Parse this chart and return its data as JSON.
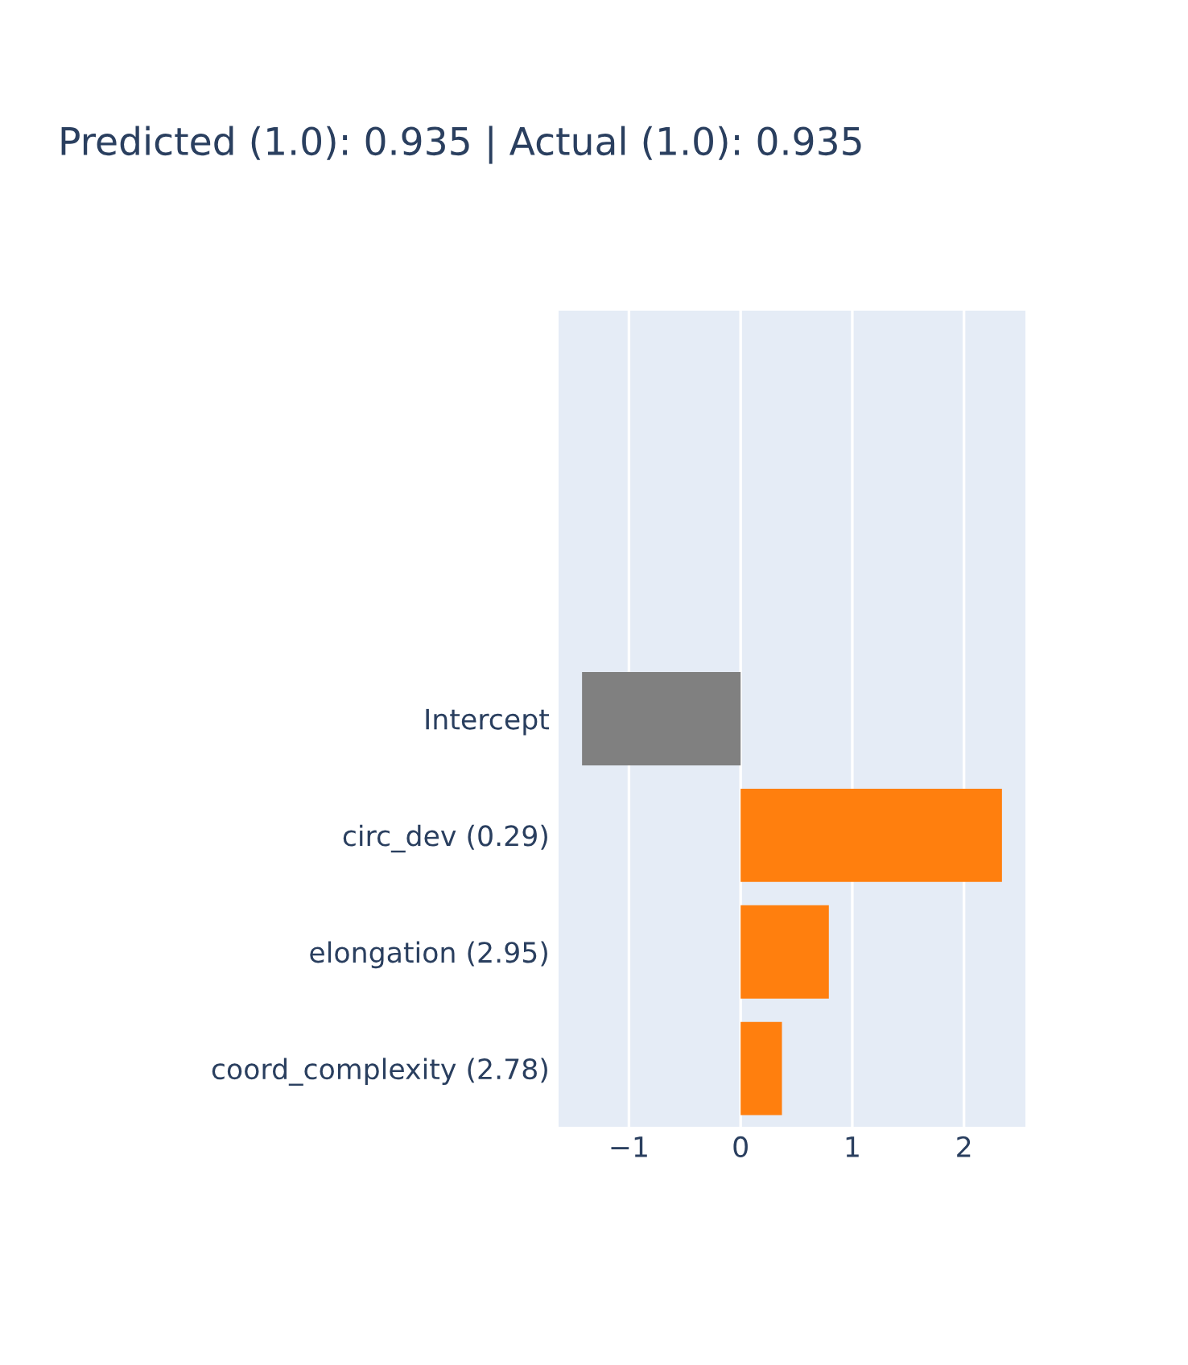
{
  "chart_data": {
    "type": "bar",
    "orientation": "horizontal",
    "title": "Predicted (1.0): 0.935 | Actual (1.0): 0.935",
    "categories": [
      null,
      null,
      null,
      "Intercept",
      "circ_dev (0.29)",
      "elongation (2.95)",
      "coord_complexity (2.78)"
    ],
    "values": [
      null,
      null,
      null,
      -1.42,
      2.34,
      0.79,
      0.37
    ],
    "colors": [
      "#808080",
      "#808080",
      "#808080",
      "#808080",
      "#ff7f0e",
      "#ff7f0e",
      "#ff7f0e"
    ],
    "xlim": [
      -1.63,
      2.55
    ],
    "xticks": [
      {
        "value": -1,
        "label": "−1"
      },
      0,
      1,
      2
    ],
    "grid": "x"
  }
}
